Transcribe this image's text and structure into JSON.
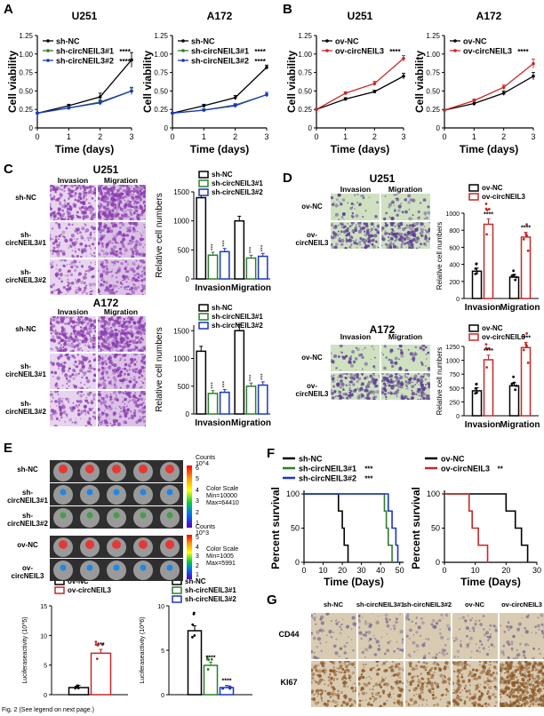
{
  "colors": {
    "black": "#000000",
    "green": "#2e7d2e",
    "blue": "#1a35c8",
    "red": "#c62828",
    "he_purple": "#8a3fb0",
    "green_bg": "#cfe1c1",
    "ihc_bg": "#d9cbb2",
    "brown": "#8c5a2b"
  },
  "panels": {
    "A": "A",
    "B": "B",
    "C": "C",
    "D": "D",
    "E": "E",
    "F": "F",
    "G": "G"
  },
  "viability": [
    {
      "id": "A1",
      "title": "U251",
      "ylabel": "Cell viability",
      "xlabel": "Time (days)",
      "ylim": [
        0,
        1.25
      ],
      "yticks": [
        "0",
        "0.25",
        "0.50",
        "0.75",
        "1.00",
        "1.25"
      ],
      "xticks": [
        "0",
        "1",
        "2",
        "3"
      ],
      "series": [
        {
          "name": "sh-NC",
          "sig": "",
          "color": "#000000",
          "x": [
            0,
            1,
            2,
            3
          ],
          "y": [
            0.2,
            0.3,
            0.42,
            0.92
          ],
          "err": [
            0.01,
            0.02,
            0.05,
            0.1
          ]
        },
        {
          "name": "sh-circNEIL3#1",
          "sig": "****",
          "color": "#2e7d2e",
          "x": [
            0,
            1,
            2,
            3
          ],
          "y": [
            0.2,
            0.27,
            0.35,
            0.5
          ],
          "err": [
            0.01,
            0.02,
            0.03,
            0.04
          ]
        },
        {
          "name": "sh-circNEIL3#2",
          "sig": "****",
          "color": "#1a35c8",
          "x": [
            0,
            1,
            2,
            3
          ],
          "y": [
            0.2,
            0.27,
            0.34,
            0.5
          ],
          "err": [
            0.01,
            0.02,
            0.03,
            0.05
          ]
        }
      ]
    },
    {
      "id": "A2",
      "title": "A172",
      "ylabel": "Cell viability",
      "xlabel": "Time (days)",
      "ylim": [
        0,
        1.25
      ],
      "yticks": [
        "0",
        "0.25",
        "0.50",
        "0.75",
        "1.00",
        "1.25"
      ],
      "xticks": [
        "0",
        "1",
        "2",
        "3"
      ],
      "series": [
        {
          "name": "sh-NC",
          "sig": "",
          "color": "#000000",
          "x": [
            0,
            1,
            2,
            3
          ],
          "y": [
            0.2,
            0.3,
            0.41,
            0.82
          ],
          "err": [
            0.01,
            0.02,
            0.03,
            0.03
          ]
        },
        {
          "name": "sh-circNEIL3#1",
          "sig": "****",
          "color": "#2e7d2e",
          "x": [
            0,
            1,
            2,
            3
          ],
          "y": [
            0.2,
            0.24,
            0.31,
            0.45
          ],
          "err": [
            0.01,
            0.02,
            0.02,
            0.03
          ]
        },
        {
          "name": "sh-circNEIL3#2",
          "sig": "****",
          "color": "#1a35c8",
          "x": [
            0,
            1,
            2,
            3
          ],
          "y": [
            0.2,
            0.24,
            0.3,
            0.45
          ],
          "err": [
            0.01,
            0.02,
            0.02,
            0.03
          ]
        }
      ]
    },
    {
      "id": "B1",
      "title": "U251",
      "ylabel": "Cell viability",
      "xlabel": "Time (days)",
      "ylim": [
        0,
        1.25
      ],
      "yticks": [
        "0",
        "0.25",
        "0.50",
        "0.75",
        "1.00",
        "1.25"
      ],
      "xticks": [
        "0",
        "1",
        "2",
        "3"
      ],
      "series": [
        {
          "name": "ov-NC",
          "sig": "",
          "color": "#000000",
          "x": [
            0,
            1,
            2,
            3
          ],
          "y": [
            0.25,
            0.39,
            0.49,
            0.7
          ],
          "err": [
            0.01,
            0.02,
            0.02,
            0.04
          ]
        },
        {
          "name": "ov-circNEIL3",
          "sig": "****",
          "color": "#c62828",
          "x": [
            0,
            1,
            2,
            3
          ],
          "y": [
            0.25,
            0.47,
            0.6,
            0.94
          ],
          "err": [
            0.01,
            0.02,
            0.03,
            0.04
          ]
        }
      ]
    },
    {
      "id": "B2",
      "title": "A172",
      "ylabel": "Cell viability",
      "xlabel": "Time (days)",
      "ylim": [
        0,
        1.25
      ],
      "yticks": [
        "0",
        "0.25",
        "0.50",
        "0.75",
        "1.00",
        "1.25"
      ],
      "xticks": [
        "0",
        "1",
        "2",
        "3"
      ],
      "series": [
        {
          "name": "ov-NC",
          "sig": "",
          "color": "#000000",
          "x": [
            0,
            1,
            2,
            3
          ],
          "y": [
            0.24,
            0.33,
            0.47,
            0.7
          ],
          "err": [
            0.01,
            0.03,
            0.03,
            0.05
          ]
        },
        {
          "name": "ov-circNEIL3",
          "sig": "****",
          "color": "#c62828",
          "x": [
            0,
            1,
            2,
            3
          ],
          "y": [
            0.24,
            0.37,
            0.55,
            0.87
          ],
          "err": [
            0.01,
            0.02,
            0.03,
            0.06
          ]
        }
      ]
    }
  ],
  "bars": [
    {
      "id": "C1",
      "ylabel": "Relative cell numbers",
      "yticks": [
        "0",
        "500",
        "1000",
        "1500"
      ],
      "ylim": [
        0,
        1500
      ],
      "categories": [
        "Invasion",
        "Migration"
      ],
      "series": [
        {
          "name": "sh-NC",
          "color": "#000000",
          "values": [
            1400,
            1000
          ],
          "sig": [
            "",
            ""
          ]
        },
        {
          "name": "sh-circNEIL3#1",
          "color": "#2e7d2e",
          "values": [
            410,
            360
          ],
          "sig": [
            "***",
            "***"
          ]
        },
        {
          "name": "sh-circNEIL3#2",
          "color": "#1a35c8",
          "values": [
            470,
            390
          ],
          "sig": [
            "***",
            "***"
          ]
        }
      ]
    },
    {
      "id": "C2",
      "ylabel": "Relative cell numbers",
      "yticks": [
        "0",
        "500",
        "1000",
        "1500"
      ],
      "ylim": [
        0,
        1600
      ],
      "categories": [
        "Invasion",
        "Migration"
      ],
      "series": [
        {
          "name": "sh-NC",
          "color": "#000000",
          "values": [
            1130,
            1500
          ],
          "sig": [
            "",
            ""
          ]
        },
        {
          "name": "sh-circNEIL3#1",
          "color": "#2e7d2e",
          "values": [
            370,
            500
          ],
          "sig": [
            "***",
            "***"
          ]
        },
        {
          "name": "sh-circNEIL3#2",
          "color": "#1a35c8",
          "values": [
            390,
            520
          ],
          "sig": [
            "***",
            "***"
          ]
        }
      ]
    },
    {
      "id": "D1",
      "ylabel": "Relative cell numbers",
      "yticks": [
        "0",
        "200",
        "400",
        "600",
        "800",
        "1000"
      ],
      "ylim": [
        0,
        1000
      ],
      "categories": [
        "Invasion",
        "Migration"
      ],
      "series": [
        {
          "name": "ov-NC",
          "color": "#000000",
          "values": [
            320,
            250
          ],
          "sig": [
            "",
            ""
          ]
        },
        {
          "name": "ov-circNEIL3",
          "color": "#c62828",
          "values": [
            870,
            720
          ],
          "sig": [
            "****",
            "****"
          ]
        }
      ]
    },
    {
      "id": "D2",
      "ylabel": "Relative cell numbers",
      "yticks": [
        "0",
        "250",
        "500",
        "750",
        "1000",
        "1250"
      ],
      "ylim": [
        0,
        1250
      ],
      "categories": [
        "Invasion",
        "Migration"
      ],
      "series": [
        {
          "name": "ov-NC",
          "color": "#000000",
          "values": [
            450,
            540
          ],
          "sig": [
            "",
            ""
          ]
        },
        {
          "name": "ov-circNEIL3",
          "color": "#c62828",
          "values": [
            1010,
            1230
          ],
          "sig": [
            "****",
            "****"
          ]
        }
      ]
    },
    {
      "id": "E1",
      "ylabel": "Luciferaseactivity (10^5)",
      "yticks": [
        "0",
        "5",
        "10",
        "15"
      ],
      "ylim": [
        0,
        15
      ],
      "categories": [
        ""
      ],
      "series": [
        {
          "name": "ov-NC",
          "color": "#000000",
          "values": [
            1.2
          ],
          "sig": [
            ""
          ]
        },
        {
          "name": "ov-circNEIL3",
          "color": "#c62828",
          "values": [
            7
          ],
          "sig": [
            "***"
          ]
        }
      ]
    },
    {
      "id": "E2",
      "ylabel": "Luciferaseactivity (10^6)",
      "yticks": [
        "0",
        "5",
        "10"
      ],
      "ylim": [
        0,
        10
      ],
      "categories": [
        ""
      ],
      "series": [
        {
          "name": "sh-NC",
          "color": "#000000",
          "values": [
            7.2
          ],
          "sig": [
            ""
          ]
        },
        {
          "name": "sh-circNEIL3#1",
          "color": "#2e7d2e",
          "values": [
            3.3
          ],
          "sig": [
            "****"
          ]
        },
        {
          "name": "sh-circNEIL3#2",
          "color": "#1a35c8",
          "values": [
            0.8
          ],
          "sig": [
            "****"
          ]
        }
      ]
    }
  ],
  "survival": [
    {
      "id": "F1",
      "ylabel": "Percent survival",
      "xlabel": "Time (Days)",
      "yticks": [
        "0",
        "50",
        "100"
      ],
      "xticks": [
        "0",
        "10",
        "20",
        "30",
        "40",
        "50"
      ],
      "xlim": [
        0,
        52
      ],
      "series": [
        {
          "name": "sh-NC",
          "sig": "",
          "color": "#000000",
          "steps": [
            [
              0,
              100
            ],
            [
              18,
              100
            ],
            [
              18,
              75
            ],
            [
              20,
              75
            ],
            [
              20,
              50
            ],
            [
              21,
              50
            ],
            [
              21,
              25
            ],
            [
              23,
              25
            ],
            [
              23,
              0
            ]
          ]
        },
        {
          "name": "sh-circNEIL3#1",
          "sig": "***",
          "color": "#2e7d2e",
          "steps": [
            [
              0,
              100
            ],
            [
              42,
              100
            ],
            [
              42,
              75
            ],
            [
              43,
              75
            ],
            [
              43,
              50
            ],
            [
              44,
              50
            ],
            [
              44,
              25
            ],
            [
              46,
              25
            ],
            [
              46,
              0
            ]
          ]
        },
        {
          "name": "sh-circNEIL3#2",
          "sig": "***",
          "color": "#1a35c8",
          "steps": [
            [
              0,
              100
            ],
            [
              44,
              100
            ],
            [
              44,
              75
            ],
            [
              46,
              75
            ],
            [
              46,
              50
            ],
            [
              48,
              50
            ],
            [
              48,
              25
            ],
            [
              49,
              25
            ],
            [
              49,
              0
            ]
          ]
        }
      ]
    },
    {
      "id": "F2",
      "ylabel": "Percent survival",
      "xlabel": "Time (Days)",
      "yticks": [
        "0",
        "50",
        "100"
      ],
      "xticks": [
        "0",
        "10",
        "20",
        "30"
      ],
      "xlim": [
        0,
        30
      ],
      "series": [
        {
          "name": "ov-NC",
          "sig": "",
          "color": "#000000",
          "steps": [
            [
              0,
              100
            ],
            [
              20,
              100
            ],
            [
              20,
              75
            ],
            [
              23,
              75
            ],
            [
              23,
              50
            ],
            [
              25,
              50
            ],
            [
              25,
              25
            ],
            [
              27,
              25
            ],
            [
              27,
              0
            ]
          ]
        },
        {
          "name": "ov-circNEIL3",
          "sig": "**",
          "color": "#c62828",
          "steps": [
            [
              0,
              100
            ],
            [
              8,
              100
            ],
            [
              8,
              75
            ],
            [
              9,
              75
            ],
            [
              9,
              50
            ],
            [
              11,
              50
            ],
            [
              11,
              25
            ],
            [
              14,
              25
            ],
            [
              14,
              0
            ]
          ]
        }
      ]
    }
  ],
  "panelC": {
    "u251_title": "U251",
    "a172_title": "A172",
    "invasion": "Invasion",
    "migration": "Migration",
    "rows": [
      "sh-NC",
      "sh-circNEIL3#1",
      "sh-circNEIL3#2"
    ],
    "scale": "100μm"
  },
  "panelD": {
    "u251_title": "U251",
    "a172_title": "A172",
    "invasion": "Invasion",
    "migration": "Migration",
    "rows": [
      "ov-NC",
      "ov-circNEIL3"
    ],
    "scale": "100μm"
  },
  "panelE": {
    "top_rows": [
      "sh-NC",
      "sh-circNEIL3#1",
      "sh-circNEIL3#2"
    ],
    "bottom_rows": [
      "ov-NC",
      "ov-circNEIL3"
    ],
    "scale1": {
      "counts": "Counts",
      "unit": "10^4",
      "ticks": [
        "6",
        "5",
        "4",
        "3",
        "2",
        "1"
      ],
      "cs": "Color Scale",
      "min": "Min=10000",
      "max": "Max=64410"
    },
    "scale2": {
      "counts": "Counts",
      "unit": "10^3",
      "ticks": [
        "5",
        "4",
        "3",
        "2",
        "1"
      ],
      "cs": "Color Scale",
      "min": "Min=1005",
      "max": "Max=5991"
    }
  },
  "panelG": {
    "cols": [
      "sh-NC",
      "sh-circNEIL3#1",
      "sh-circNEIL3#2",
      "ov-NC",
      "ov-circNEIL3"
    ],
    "rows": [
      "CD44",
      "KI67"
    ]
  },
  "caption": "Fig. 2 (See legend on next page.)"
}
